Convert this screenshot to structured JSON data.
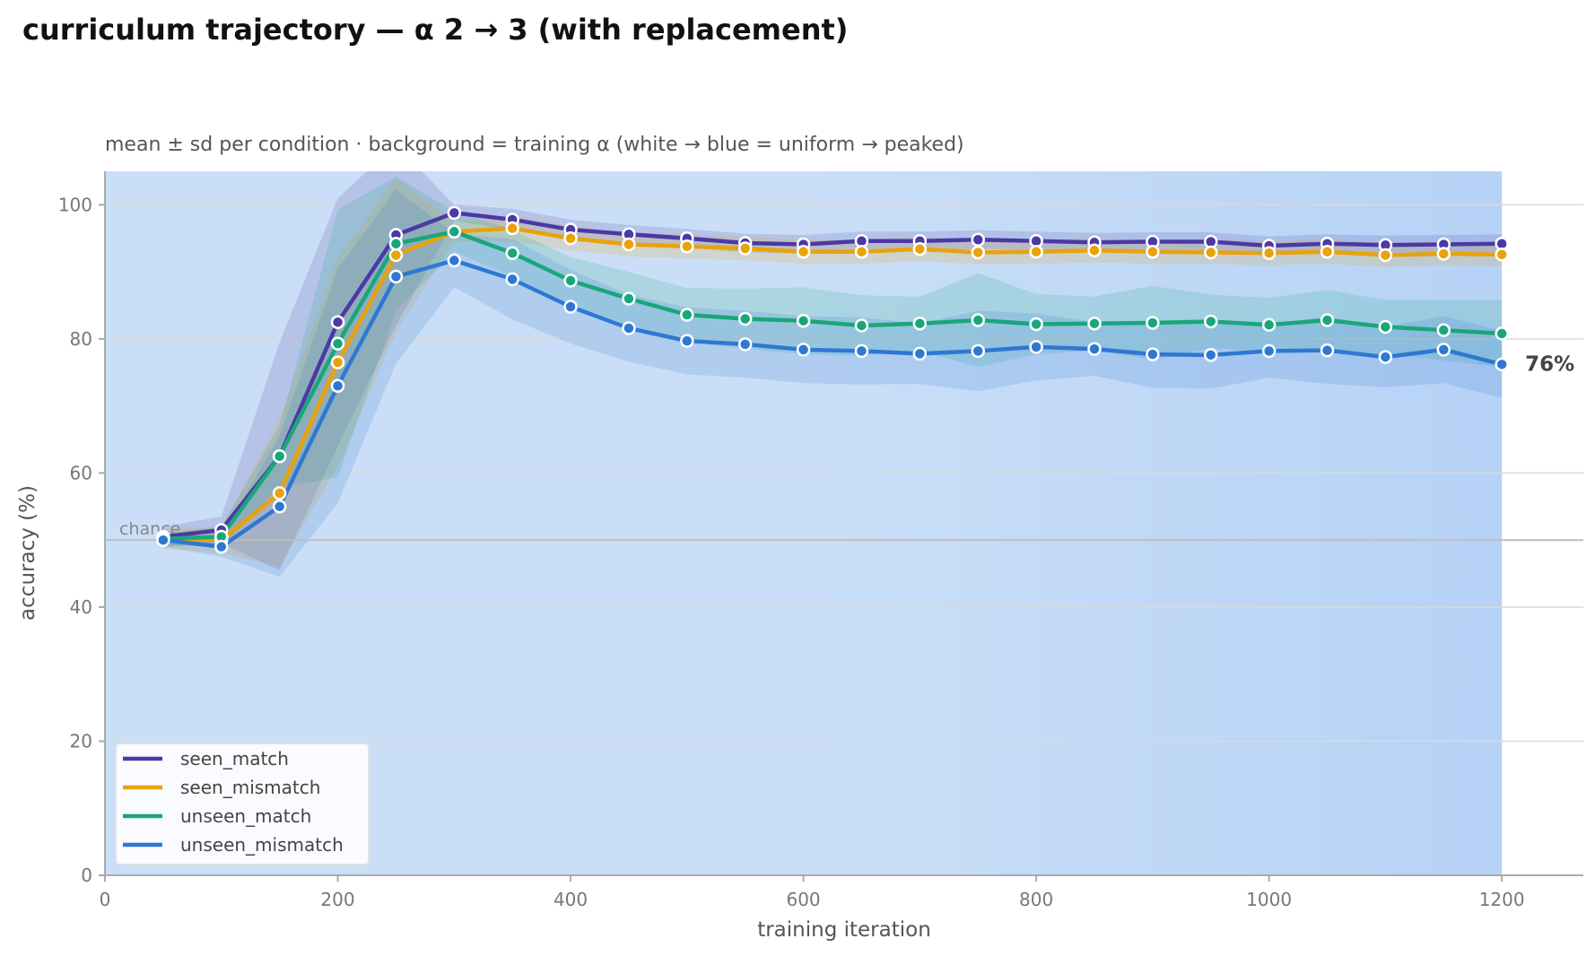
{
  "title": "curriculum trajectory — α 2 → 3 (with replacement)",
  "chart_data": {
    "type": "line",
    "subtitle": "mean ± sd per condition · background = training α (white → blue = uniform → peaked)",
    "xlabel": "training iteration",
    "ylabel": "accuracy (%)",
    "xlim": [
      0,
      1270
    ],
    "ylim": [
      0,
      105
    ],
    "xticks": [
      0,
      200,
      400,
      600,
      800,
      1000,
      1200
    ],
    "yticks": [
      0,
      20,
      40,
      60,
      80,
      100
    ],
    "grid": "horizontal",
    "legend_position": "lower-left",
    "background_band": {
      "x_range": [
        0,
        1200
      ],
      "color_start": "#cadff7",
      "color_end": "#b6d2f6"
    },
    "chance_line": {
      "y": 50,
      "label": "chance",
      "color": "#bdbdbd"
    },
    "end_label": {
      "series": "unseen_mismatch",
      "text": "76%",
      "color": "#444444"
    },
    "x": [
      50,
      100,
      150,
      200,
      250,
      300,
      350,
      400,
      450,
      500,
      550,
      600,
      650,
      700,
      750,
      800,
      850,
      900,
      950,
      1000,
      1050,
      1100,
      1150,
      1200
    ],
    "series": [
      {
        "name": "seen_match",
        "color": "#4b39a5",
        "values": [
          50.5,
          51.5,
          62.5,
          82.5,
          95.5,
          98.8,
          97.8,
          96.3,
          95.6,
          95.0,
          94.3,
          94.1,
          94.6,
          94.6,
          94.8,
          94.6,
          94.4,
          94.5,
          94.5,
          93.9,
          94.2,
          94.0,
          94.1,
          94.2
        ],
        "sd": [
          1.5,
          2.0,
          17.0,
          18.5,
          13.5,
          1.2,
          1.6,
          1.5,
          1.4,
          1.4,
          1.4,
          1.4,
          1.4,
          1.4,
          1.4,
          1.4,
          1.4,
          1.4,
          1.4,
          1.4,
          1.4,
          1.4,
          1.4,
          1.4
        ]
      },
      {
        "name": "seen_mismatch",
        "color": "#e8a20c",
        "values": [
          50.2,
          50.0,
          57.0,
          76.5,
          92.5,
          96.0,
          96.5,
          95.0,
          94.1,
          93.8,
          93.5,
          93.0,
          93.0,
          93.4,
          92.9,
          93.0,
          93.2,
          93.0,
          92.9,
          92.8,
          93.0,
          92.5,
          92.7,
          92.6
        ],
        "sd": [
          1.5,
          2.0,
          11.0,
          15.5,
          11.5,
          1.5,
          2.0,
          1.8,
          1.8,
          1.8,
          1.8,
          1.8,
          1.8,
          1.8,
          1.8,
          1.8,
          1.8,
          1.8,
          1.8,
          1.8,
          1.8,
          1.8,
          1.8,
          1.8
        ]
      },
      {
        "name": "unseen_match",
        "color": "#1aa67a",
        "values": [
          50.2,
          50.5,
          62.5,
          79.3,
          94.2,
          96.0,
          92.8,
          88.7,
          86.0,
          83.6,
          83.0,
          82.7,
          82.0,
          82.3,
          82.8,
          82.2,
          82.3,
          82.4,
          82.6,
          82.1,
          82.8,
          81.8,
          81.3,
          80.8
        ],
        "sd": [
          1.0,
          1.5,
          4.5,
          20.0,
          10.0,
          3.0,
          3.5,
          3.5,
          4.0,
          4.0,
          4.5,
          5.0,
          4.5,
          4.0,
          7.0,
          4.5,
          4.0,
          5.5,
          4.0,
          4.0,
          4.5,
          4.0,
          4.5,
          5.0
        ]
      },
      {
        "name": "unseen_mismatch",
        "color": "#2e78d2",
        "values": [
          50.0,
          49.0,
          55.0,
          73.0,
          89.3,
          91.7,
          88.9,
          84.8,
          81.6,
          79.7,
          79.2,
          78.4,
          78.2,
          77.8,
          78.2,
          78.8,
          78.5,
          77.7,
          77.6,
          78.2,
          78.3,
          77.3,
          78.4,
          76.2
        ],
        "sd": [
          1.0,
          1.5,
          10.5,
          17.5,
          13.0,
          4.0,
          6.0,
          5.5,
          5.0,
          5.0,
          5.0,
          5.0,
          5.0,
          4.5,
          6.0,
          5.0,
          4.0,
          5.0,
          5.0,
          4.0,
          5.0,
          4.5,
          5.0,
          5.0
        ]
      }
    ]
  }
}
